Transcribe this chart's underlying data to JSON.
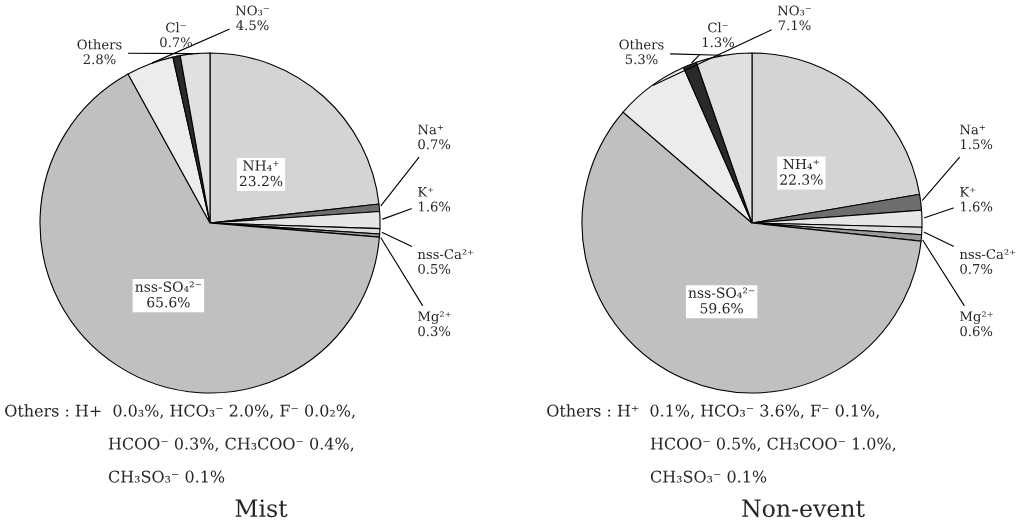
{
  "chart_data": [
    {
      "type": "pie",
      "title": "Mist",
      "categories": [
        "NH₄⁺",
        "Na⁺",
        "K⁺",
        "nss-Ca²⁺",
        "Mg²⁺",
        "nss-SO₄²⁻",
        "NO₃⁻",
        "Cl⁻",
        "Others"
      ],
      "values": [
        23.2,
        0.7,
        1.6,
        0.5,
        0.3,
        65.6,
        4.5,
        0.7,
        2.8
      ],
      "value_labels": [
        "23.2%",
        "0.7%",
        "1.6%",
        "0.5%",
        "0.3%",
        "65.6%",
        "4.5%",
        "0.7%",
        "2.8%"
      ],
      "colors": [
        "#d4d4d4",
        "#6e6e6e",
        "#e6e6e6",
        "#dcdcdc",
        "#9a9a9a",
        "#c0c0c0",
        "#ececec",
        "#2a2a2a",
        "#e0e0e0"
      ],
      "annotations": [
        "Others : H+  0.0₃%, HCO₃⁻ 2.0%, F⁻ 0.0₂%,",
        "HCOO⁻ 0.3%, CH₃COO⁻ 0.4%,",
        "CH₃SO₃⁻ 0.1%"
      ]
    },
    {
      "type": "pie",
      "title": "Non-event",
      "categories": [
        "NH₄⁺",
        "Na⁺",
        "K⁺",
        "nss-Ca²⁺",
        "Mg²⁺",
        "nss-SO₄²⁻",
        "NO₃⁻",
        "Cl⁻",
        "Others"
      ],
      "values": [
        22.3,
        1.5,
        1.6,
        0.7,
        0.6,
        59.6,
        7.1,
        1.3,
        5.3
      ],
      "value_labels": [
        "22.3%",
        "1.5%",
        "1.6%",
        "0.7%",
        "0.6%",
        "59.6%",
        "7.1%",
        "1.3%",
        "5.3%"
      ],
      "colors": [
        "#d4d4d4",
        "#6e6e6e",
        "#e6e6e6",
        "#dcdcdc",
        "#9a9a9a",
        "#c0c0c0",
        "#ececec",
        "#2a2a2a",
        "#e0e0e0"
      ],
      "annotations": [
        "Others : H⁺  0.1%, HCO₃⁻ 3.6%, F⁻ 0.1%,",
        "HCOO⁻ 0.5%, CH₃COO⁻ 1.0%,",
        "CH₃SO₃⁻ 0.1%"
      ]
    }
  ]
}
